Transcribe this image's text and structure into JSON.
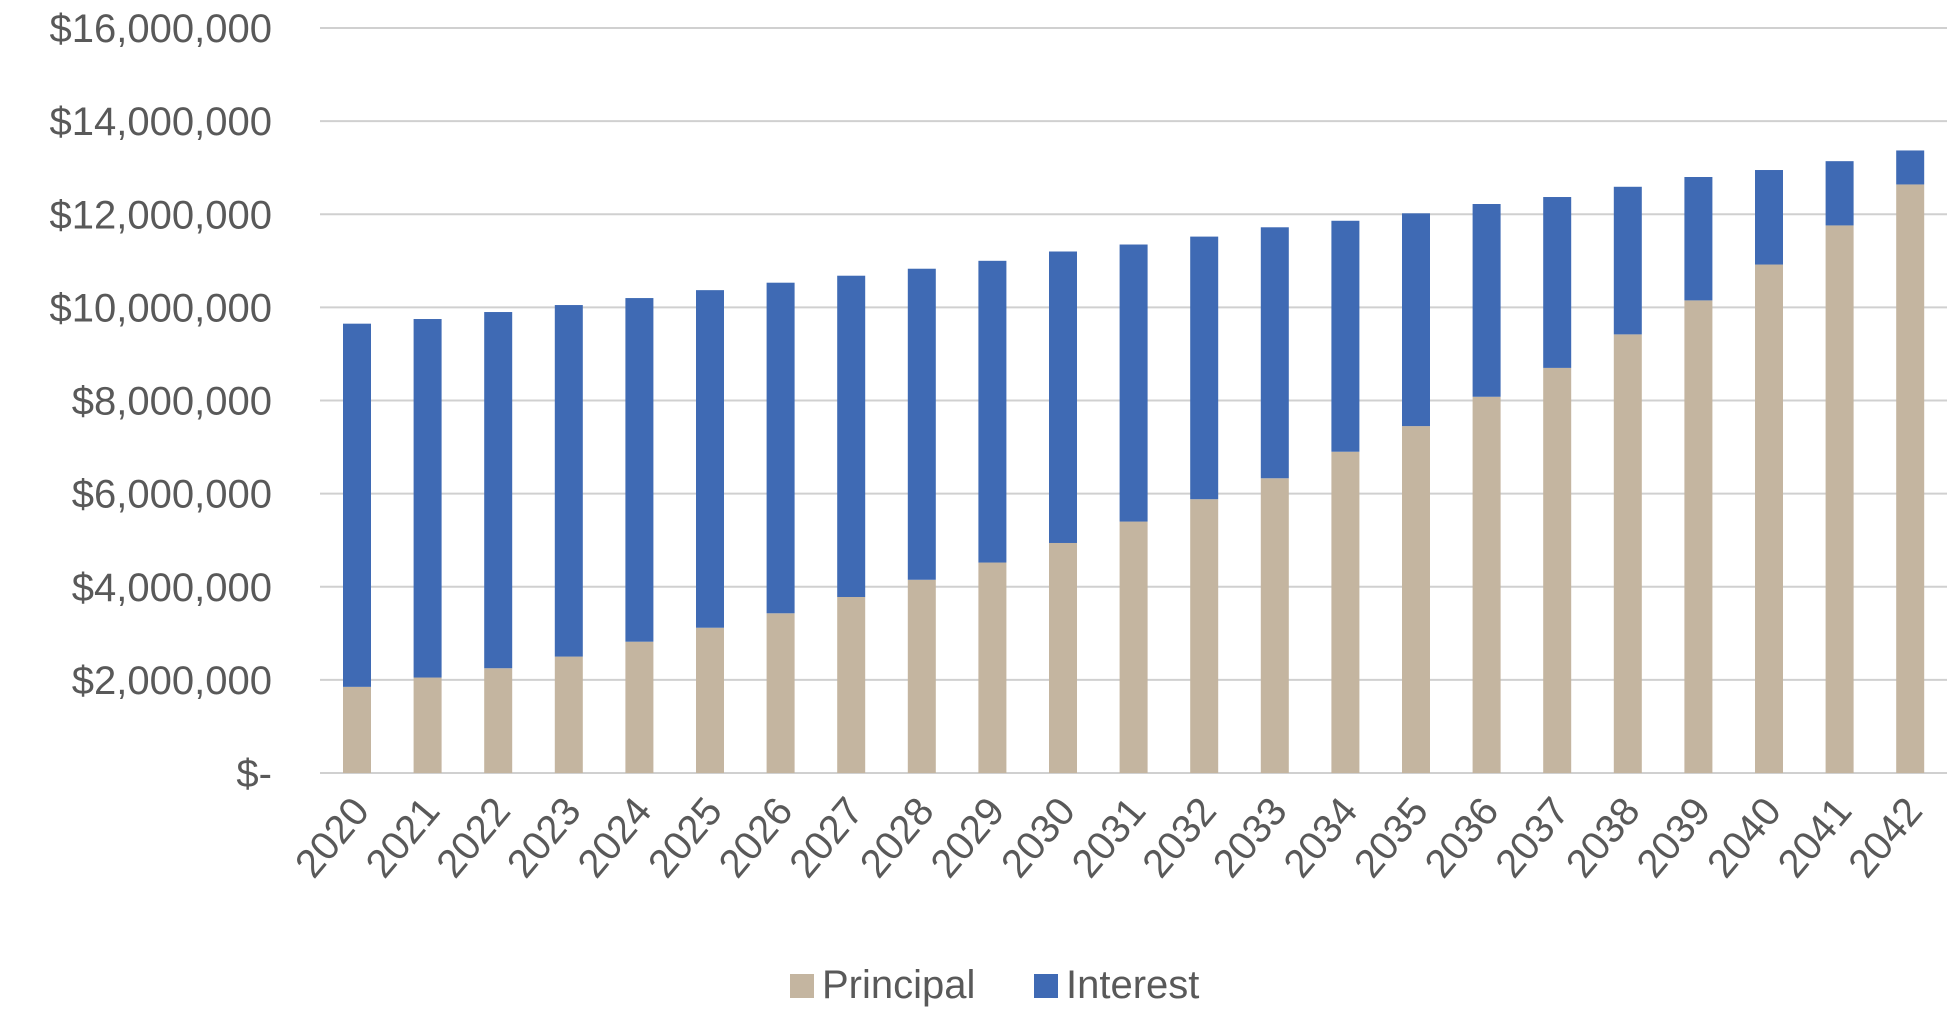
{
  "chart_data": {
    "type": "bar",
    "stacked": true,
    "title": "",
    "xlabel": "",
    "ylabel": "",
    "categories": [
      "2020",
      "2021",
      "2022",
      "2023",
      "2024",
      "2025",
      "2026",
      "2027",
      "2028",
      "2029",
      "2030",
      "2031",
      "2032",
      "2033",
      "2034",
      "2035",
      "2036",
      "2037",
      "2038",
      "2039",
      "2040",
      "2041",
      "2042"
    ],
    "series": [
      {
        "name": "Principal",
        "color": "#C4B5A0",
        "values": [
          1850000,
          2050000,
          2250000,
          2500000,
          2820000,
          3120000,
          3430000,
          3780000,
          4150000,
          4520000,
          4940000,
          5400000,
          5880000,
          6330000,
          6900000,
          7450000,
          8080000,
          8700000,
          9420000,
          10150000,
          10920000,
          11760000,
          12640000
        ]
      },
      {
        "name": "Interest",
        "color": "#3F6AB4",
        "values": [
          7800000,
          7700000,
          7650000,
          7550000,
          7380000,
          7250000,
          7100000,
          6900000,
          6680000,
          6480000,
          6260000,
          5950000,
          5640000,
          5390000,
          4960000,
          4570000,
          4140000,
          3670000,
          3170000,
          2650000,
          2030000,
          1380000,
          730000
        ]
      }
    ],
    "ylim": [
      0,
      16000000
    ],
    "yticks": [
      "$-",
      "$2,000,000",
      "$4,000,000",
      "$6,000,000",
      "$8,000,000",
      "$10,000,000",
      "$12,000,000",
      "$14,000,000",
      "$16,000,000"
    ],
    "grid": true,
    "legend_position": "bottom"
  }
}
